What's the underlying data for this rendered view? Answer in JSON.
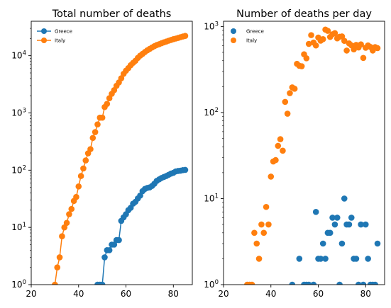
{
  "colors": {
    "greece": "#1f77b4",
    "italy": "#ff7f0e",
    "axis": "#000000"
  },
  "chart_data": [
    {
      "type": "line",
      "title": "Total number of deaths",
      "xlabel": "",
      "ylabel": "",
      "xlim": [
        20,
        88
      ],
      "ylim": [
        1,
        40000
      ],
      "yscale": "log",
      "grid": false,
      "legend_position": "top-left",
      "x_ticks": [
        "20",
        "40",
        "60",
        "80"
      ],
      "y_ticks": [
        "10^0",
        "10^1",
        "10^2",
        "10^3",
        "10^4"
      ],
      "series": [
        {
          "name": "Greece",
          "x": [
            48,
            49,
            50,
            51,
            52,
            53,
            54,
            55,
            56,
            57,
            58,
            59,
            60,
            61,
            62,
            63,
            64,
            65,
            66,
            67,
            68,
            69,
            70,
            71,
            72,
            73,
            74,
            75,
            76,
            77,
            78,
            79,
            80,
            81,
            82,
            83,
            84,
            85
          ],
          "y": [
            1,
            1,
            1,
            3,
            4,
            4,
            5,
            5,
            6,
            6,
            13,
            15,
            17,
            20,
            22,
            26,
            28,
            32,
            36,
            43,
            47,
            49,
            50,
            53,
            58,
            65,
            69,
            73,
            76,
            79,
            83,
            87,
            90,
            95,
            97,
            98,
            100,
            101
          ]
        },
        {
          "name": "Italy",
          "x": [
            30,
            31,
            32,
            33,
            34,
            35,
            36,
            37,
            38,
            39,
            40,
            41,
            42,
            43,
            44,
            45,
            46,
            47,
            48,
            49,
            50,
            51,
            52,
            53,
            54,
            55,
            56,
            57,
            58,
            59,
            60,
            61,
            62,
            63,
            64,
            65,
            66,
            67,
            68,
            69,
            70,
            71,
            72,
            73,
            74,
            75,
            76,
            77,
            78,
            79,
            80,
            81,
            82,
            83,
            84,
            85
          ],
          "y": [
            1,
            2,
            3,
            7,
            10,
            12,
            17,
            21,
            29,
            34,
            52,
            79,
            107,
            148,
            197,
            233,
            366,
            463,
            631,
            827,
            827,
            1266,
            1441,
            1809,
            2158,
            2503,
            2978,
            3405,
            4032,
            4825,
            5476,
            6077,
            6820,
            7503,
            8165,
            9134,
            10023,
            10779,
            11591,
            12428,
            13155,
            13915,
            14681,
            15362,
            15887,
            16523,
            17127,
            17669,
            18279,
            18849,
            19468,
            19899,
            20465,
            21067,
            21645,
            22170
          ]
        }
      ]
    },
    {
      "type": "scatter",
      "title": "Number of deaths per day",
      "xlabel": "",
      "ylabel": "",
      "xlim": [
        20,
        88
      ],
      "ylim": [
        1,
        1150
      ],
      "yscale": "log",
      "grid": false,
      "legend_position": "top-left",
      "x_ticks": [
        "20",
        "40",
        "60",
        "80"
      ],
      "y_ticks": [
        "10^0",
        "10^1",
        "10^2",
        "10^3"
      ],
      "series": [
        {
          "name": "Greece",
          "x": [
            49,
            52,
            54,
            55,
            56,
            58,
            59,
            60,
            61,
            62,
            63,
            64,
            65,
            66,
            67,
            68,
            69,
            70,
            71,
            72,
            73,
            74,
            75,
            76,
            77,
            78,
            79,
            80,
            81,
            82,
            83,
            84,
            85
          ],
          "y": [
            1,
            2,
            1,
            1,
            1,
            1,
            7,
            2,
            2,
            3,
            2,
            4,
            4,
            6,
            5,
            6,
            1,
            3,
            10,
            5,
            5,
            6,
            2,
            2,
            1,
            5,
            1,
            5,
            2,
            1,
            1,
            1,
            3
          ]
        },
        {
          "name": "Italy",
          "x": [
            30,
            31,
            32,
            33,
            34,
            35,
            36,
            37,
            38,
            39,
            40,
            41,
            42,
            43,
            44,
            45,
            46,
            47,
            48,
            49,
            50,
            51,
            52,
            53,
            54,
            55,
            56,
            57,
            58,
            59,
            60,
            61,
            62,
            63,
            64,
            65,
            66,
            67,
            68,
            69,
            70,
            71,
            72,
            73,
            74,
            75,
            76,
            77,
            78,
            79,
            80,
            81,
            82,
            83,
            84,
            85
          ],
          "y": [
            1,
            1,
            1,
            4,
            3,
            2,
            5,
            4,
            8,
            5,
            18,
            27,
            28,
            41,
            49,
            36,
            133,
            97,
            168,
            196,
            189,
            368,
            349,
            345,
            475,
            427,
            627,
            793,
            651,
            601,
            743,
            683,
            712,
            919,
            889,
            756,
            812,
            837,
            727,
            760,
            766,
            681,
            525,
            636,
            604,
            542,
            610,
            570,
            619,
            431,
            566,
            602,
            578,
            525,
            575,
            560
          ]
        }
      ]
    }
  ]
}
